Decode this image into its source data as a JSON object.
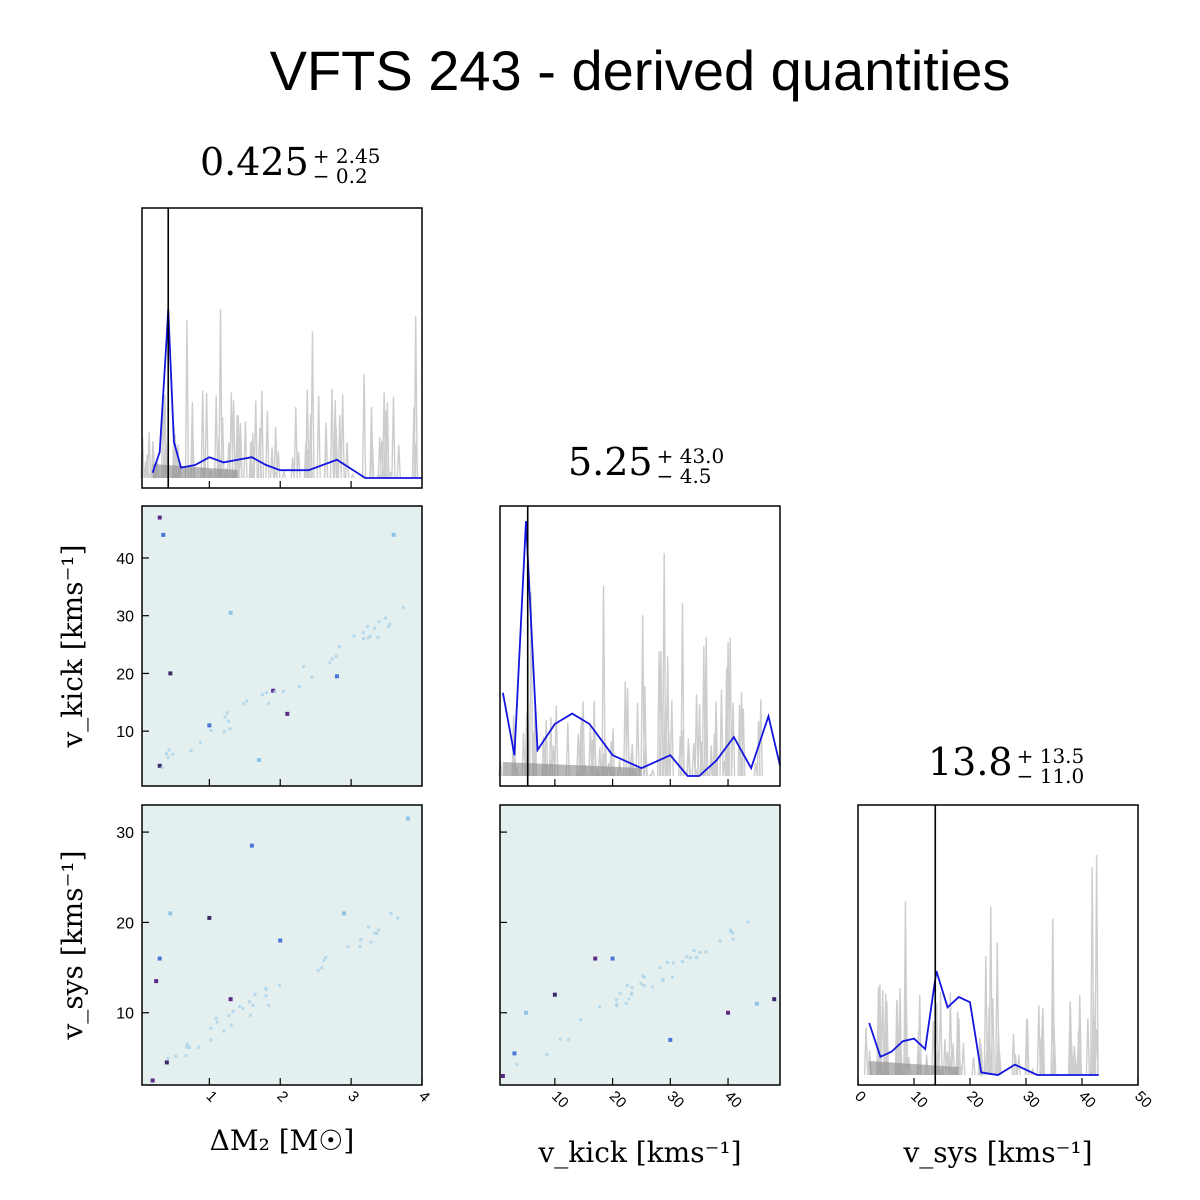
{
  "title": "VFTS 243 - derived quantities",
  "params": [
    {
      "key": "dm2",
      "label": "ΔM₂ [M☉]",
      "range": [
        0.05,
        4.0
      ],
      "ticks": [
        1,
        2,
        3,
        4
      ],
      "median": "0.425",
      "plus": "+ 2.45",
      "minus": "− 0.2",
      "truth": 0.42
    },
    {
      "key": "vkick",
      "label": "v_kick [kms⁻¹]",
      "range": [
        0.5,
        49.0
      ],
      "ticks": [
        10,
        20,
        30,
        40
      ],
      "median": "5.25",
      "plus": "+ 43.0",
      "minus": "− 4.5",
      "truth": 5.3
    },
    {
      "key": "vsys",
      "label": "v_sys [kms⁻¹]",
      "range": [
        0,
        50
      ],
      "ticks": [
        0,
        10,
        20,
        30,
        40,
        50
      ],
      "median": "13.8",
      "plus": "+ 13.5",
      "minus": "− 11.0",
      "truth": 13.8
    }
  ],
  "offdiag": [
    {
      "row": "vkick",
      "col": "dm2",
      "yrange": [
        0.5,
        49.0
      ],
      "yticks": [
        10,
        20,
        30,
        40
      ]
    },
    {
      "row": "vsys",
      "col": "dm2",
      "yrange": [
        2.0,
        33.0
      ],
      "yticks": [
        10,
        20,
        30
      ]
    },
    {
      "row": "vsys",
      "col": "vkick",
      "yrange": [
        2.0,
        33.0
      ],
      "yticks": [
        10,
        20,
        30
      ]
    }
  ],
  "colors": {
    "hist": "#1515e0",
    "samples": "#b8b8b8",
    "fill": "#888888",
    "bg2d": "#e4f0f0",
    "truth": "#000000"
  },
  "chart_data": [
    {
      "type": "line",
      "panel": "dm2-marginal",
      "x": [
        0.2,
        0.3,
        0.4,
        0.42,
        0.5,
        0.6,
        0.8,
        1.0,
        1.2,
        1.4,
        1.6,
        1.8,
        2.0,
        2.4,
        2.8,
        3.2,
        3.6,
        4.0
      ],
      "values": [
        0.02,
        0.1,
        0.55,
        0.65,
        0.14,
        0.04,
        0.05,
        0.08,
        0.06,
        0.07,
        0.08,
        0.05,
        0.03,
        0.03,
        0.07,
        0.0,
        0.0,
        0.0
      ]
    },
    {
      "type": "line",
      "panel": "vkick-marginal",
      "x": [
        1,
        3,
        5,
        7,
        10,
        13,
        16,
        20,
        25,
        30,
        33,
        35,
        38,
        41,
        44,
        47,
        49
      ],
      "values": [
        0.32,
        0.08,
        0.98,
        0.1,
        0.2,
        0.24,
        0.2,
        0.08,
        0.03,
        0.08,
        0.0,
        0.0,
        0.06,
        0.15,
        0.03,
        0.23,
        0.04
      ]
    },
    {
      "type": "line",
      "panel": "vsys-marginal",
      "x": [
        2,
        4,
        6,
        8,
        10,
        12,
        14,
        16,
        18,
        20,
        22,
        25,
        28,
        32,
        40,
        43
      ],
      "values": [
        0.2,
        0.07,
        0.09,
        0.13,
        0.14,
        0.1,
        0.4,
        0.26,
        0.3,
        0.28,
        0.01,
        0.0,
        0.04,
        0.0,
        0.0,
        0.0
      ]
    },
    {
      "type": "heatmap",
      "panel": "vkick-vs-dm2",
      "x": [
        0.3,
        0.35,
        1.3,
        0.45,
        2.1,
        1.0,
        1.7,
        0.3,
        1.9,
        2.8,
        3.6
      ],
      "y": [
        47.0,
        44.0,
        30.5,
        20.0,
        13.0,
        11.0,
        5.0,
        4.0,
        17.0,
        19.5,
        44.0
      ]
    },
    {
      "type": "heatmap",
      "panel": "vsys-vs-dm2",
      "x": [
        0.25,
        0.3,
        0.45,
        1.0,
        1.3,
        1.6,
        2.9,
        0.4,
        0.2,
        2.0,
        3.8
      ],
      "y": [
        13.5,
        16.0,
        21.0,
        20.5,
        11.5,
        28.5,
        21.0,
        4.5,
        2.5,
        18.0,
        31.5
      ]
    },
    {
      "type": "heatmap",
      "panel": "vsys-vs-vkick",
      "x": [
        1,
        3,
        5,
        10,
        17,
        30,
        45,
        48,
        40,
        20
      ],
      "y": [
        3.0,
        5.5,
        10.0,
        12.0,
        16.0,
        7.0,
        11.0,
        11.5,
        10.0,
        16.0
      ]
    }
  ]
}
